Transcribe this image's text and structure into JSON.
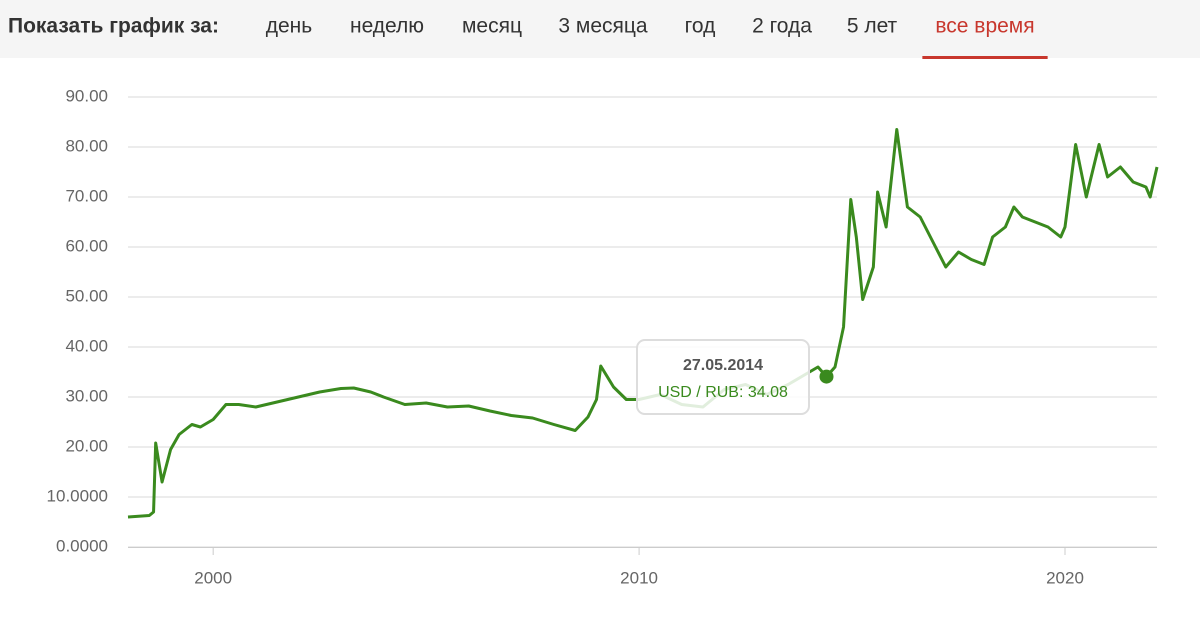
{
  "nav": {
    "label": "Показать график за:",
    "tabs": [
      "день",
      "неделю",
      "месяц",
      "3 месяца",
      "год",
      "2 года",
      "5 лет",
      "все время"
    ],
    "active": 7
  },
  "chart_data": {
    "type": "line",
    "color": "#3a8a1e",
    "grid": true,
    "x": [
      1998.0,
      1998.5,
      1998.6,
      1998.65,
      1998.8,
      1999.0,
      1999.2,
      1999.5,
      1999.7,
      2000.0,
      2000.3,
      2000.6,
      2001.0,
      2001.5,
      2002.0,
      2002.5,
      2003.0,
      2003.3,
      2003.7,
      2004.0,
      2004.5,
      2005.0,
      2005.5,
      2006.0,
      2006.5,
      2007.0,
      2007.5,
      2008.0,
      2008.5,
      2008.8,
      2009.0,
      2009.1,
      2009.4,
      2009.7,
      2010.0,
      2010.5,
      2011.0,
      2011.5,
      2012.0,
      2012.5,
      2013.0,
      2013.5,
      2014.0,
      2014.2,
      2014.4,
      2014.6,
      2014.8,
      2014.97,
      2015.1,
      2015.25,
      2015.5,
      2015.6,
      2015.8,
      2016.05,
      2016.3,
      2016.6,
      2016.9,
      2017.2,
      2017.5,
      2017.8,
      2018.1,
      2018.3,
      2018.6,
      2018.8,
      2019.0,
      2019.3,
      2019.6,
      2019.9,
      2020.0,
      2020.25,
      2020.5,
      2020.8,
      2021.0,
      2021.3,
      2021.6,
      2021.9,
      2022.0,
      2022.16
    ],
    "values": [
      6.0,
      6.3,
      7.0,
      20.8,
      13,
      19.5,
      22.5,
      24.5,
      24,
      25.5,
      28.5,
      28.5,
      28.0,
      29.0,
      30.0,
      31.0,
      31.7,
      31.8,
      31.0,
      30.0,
      28.5,
      28.8,
      28.0,
      28.2,
      27.2,
      26.3,
      25.8,
      24.5,
      23.3,
      26,
      29.5,
      36.2,
      32,
      29.5,
      29.5,
      30.5,
      28.5,
      28.0,
      31.5,
      32.5,
      30.5,
      32.5,
      35,
      36,
      34.08,
      36,
      44,
      69.5,
      62,
      49.5,
      56,
      71,
      64,
      83.5,
      68,
      66,
      61,
      56,
      59,
      57.5,
      56.5,
      62,
      64,
      68,
      66,
      65,
      64,
      62,
      64,
      80.5,
      70,
      80.5,
      74,
      76,
      73,
      72,
      70,
      76
    ],
    "xlim": [
      1998.0,
      2022.16
    ],
    "xticks": [
      2000,
      2010,
      2020
    ],
    "ylim": [
      0,
      90
    ],
    "yticks": [
      {
        "value": 0,
        "label": "0.0000"
      },
      {
        "value": 10,
        "label": "10.0000"
      },
      {
        "value": 20,
        "label": "20.00"
      },
      {
        "value": 30,
        "label": "30.00"
      },
      {
        "value": 40,
        "label": "40.00"
      },
      {
        "value": 50,
        "label": "50.00"
      },
      {
        "value": 60,
        "label": "60.00"
      },
      {
        "value": 70,
        "label": "70.00"
      },
      {
        "value": 80,
        "label": "80.00"
      },
      {
        "value": 90,
        "label": "90.00"
      }
    ],
    "tooltip": {
      "index": 44,
      "date": "27.05.2014",
      "text": "USD / RUB: 34.08"
    }
  }
}
